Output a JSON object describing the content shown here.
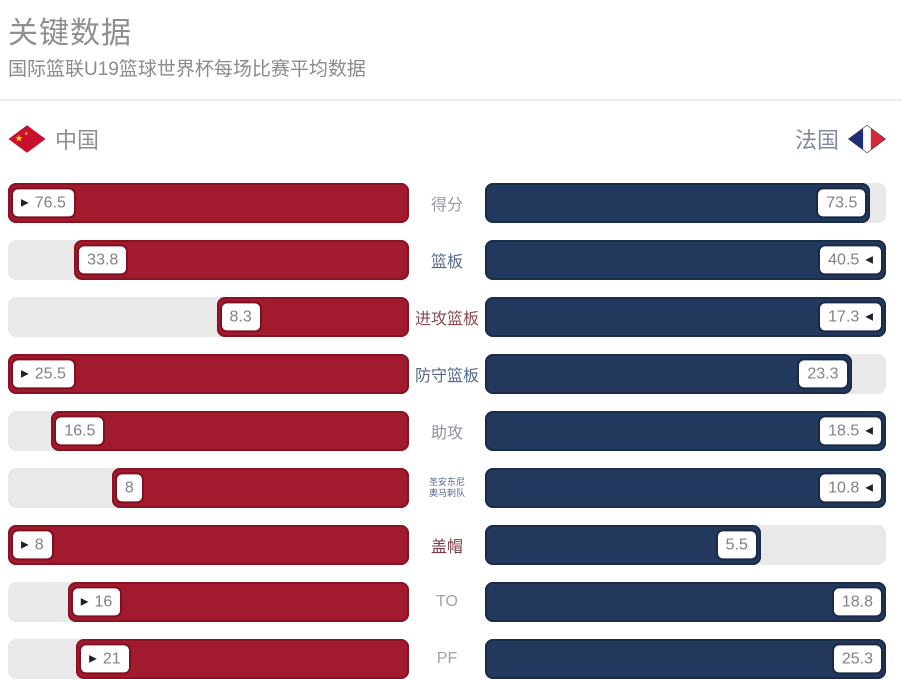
{
  "header": {
    "title": "关键数据",
    "subtitle": "国际篮联U19篮球世界杯每场比赛平均数据"
  },
  "teams": {
    "left": {
      "name": "中国",
      "bar_color": "#a21a2d",
      "box_border_color": "#7f1021",
      "flag": "china-flag"
    },
    "right": {
      "name": "法国",
      "bar_color": "#22385c",
      "box_border_color": "#1a2a46",
      "flag": "france-flag"
    }
  },
  "icons": {
    "left_winner_arrow": "▶",
    "right_winner_arrow": "◀"
  },
  "colors": {
    "track": "#eae9ea",
    "red_bar": "#a21a2d",
    "navy_bar": "#22385c",
    "divider": "#ebebee",
    "title_text": "#8e8e93",
    "value_text": "#80808a",
    "china_flag_red": "#c8102e",
    "china_flag_star": "#ffde00",
    "france_flag_blue": "#1f2e7a",
    "france_flag_red": "#d62838"
  },
  "rows": [
    {
      "label": "得分",
      "label_color": "#9a9aa1",
      "small_label": false,
      "left": {
        "value": "76.5",
        "frac": 1.0,
        "arrow": true
      },
      "right": {
        "value": "73.5",
        "frac": 0.961,
        "arrow": false
      }
    },
    {
      "label": "篮板",
      "label_color": "#55678a",
      "small_label": false,
      "left": {
        "value": "33.8",
        "frac": 0.835,
        "arrow": false
      },
      "right": {
        "value": "40.5",
        "frac": 1.0,
        "arrow": true
      }
    },
    {
      "label": "进攻篮板",
      "label_color": "#8a4a52",
      "small_label": false,
      "left": {
        "value": "8.3",
        "frac": 0.48,
        "arrow": false
      },
      "right": {
        "value": "17.3",
        "frac": 1.0,
        "arrow": true
      }
    },
    {
      "label": "防守篮板",
      "label_color": "#55678a",
      "small_label": false,
      "left": {
        "value": "25.5",
        "frac": 1.0,
        "arrow": true
      },
      "right": {
        "value": "23.3",
        "frac": 0.914,
        "arrow": false
      }
    },
    {
      "label": "助攻",
      "label_color": "#90909a",
      "small_label": false,
      "left": {
        "value": "16.5",
        "frac": 0.892,
        "arrow": false
      },
      "right": {
        "value": "18.5",
        "frac": 1.0,
        "arrow": true
      }
    },
    {
      "label": "圣安东尼\n奥马刺队",
      "label_color": "#55678a",
      "small_label": true,
      "left": {
        "value": "8",
        "frac": 0.741,
        "arrow": false
      },
      "right": {
        "value": "10.8",
        "frac": 1.0,
        "arrow": true
      }
    },
    {
      "label": "盖帽",
      "label_color": "#7d3a46",
      "small_label": false,
      "left": {
        "value": "8",
        "frac": 1.0,
        "arrow": true
      },
      "right": {
        "value": "5.5",
        "frac": 0.688,
        "arrow": false
      }
    },
    {
      "label": "TO",
      "label_color": "#a2a2a8",
      "small_label": false,
      "left": {
        "value": "16",
        "frac": 0.851,
        "arrow": true
      },
      "right": {
        "value": "18.8",
        "frac": 1.0,
        "arrow": false
      }
    },
    {
      "label": "PF",
      "label_color": "#a2a2a8",
      "small_label": false,
      "left": {
        "value": "21",
        "frac": 0.83,
        "arrow": true
      },
      "right": {
        "value": "25.3",
        "frac": 1.0,
        "arrow": false
      }
    }
  ],
  "chart_data": {
    "type": "bar",
    "orientation": "horizontal-mirrored",
    "title": "关键数据",
    "subtitle": "国际篮联U19篮球世界杯每场比赛平均数据",
    "categories": [
      "得分",
      "篮板",
      "进攻篮板",
      "防守篮板",
      "助攻",
      "圣安东尼奥马刺队",
      "盖帽",
      "TO",
      "PF"
    ],
    "series": [
      {
        "name": "中国",
        "color": "#a21a2d",
        "values": [
          76.5,
          33.8,
          8.3,
          25.5,
          16.5,
          8,
          8,
          16,
          21
        ]
      },
      {
        "name": "法国",
        "color": "#22385c",
        "values": [
          73.5,
          40.5,
          17.3,
          23.3,
          18.5,
          10.8,
          5.5,
          18.8,
          25.3
        ]
      }
    ],
    "bar_scaling": "each row scaled to max of the pair",
    "better_value_marker": [
      "中国",
      "法国",
      "法国",
      "中国",
      "法国",
      "法国",
      "中国",
      "中国",
      "中国"
    ],
    "legend_position": "top",
    "grid": false
  }
}
